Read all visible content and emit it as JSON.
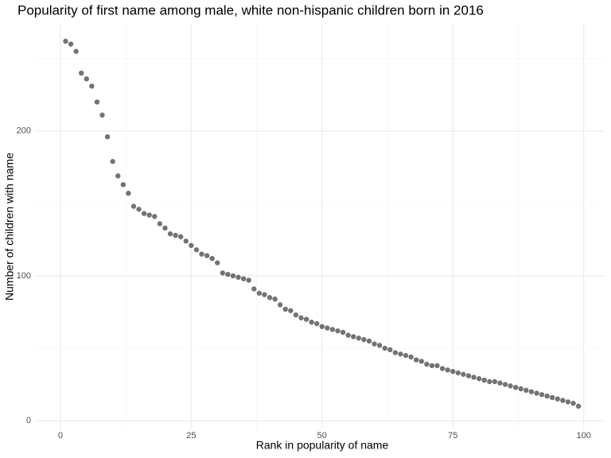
{
  "chart_data": {
    "type": "scatter",
    "title": "Popularity of first name among male, white non-hispanic children born in 2016",
    "x_label": "Rank in popularity of name",
    "y_label": "Number of children with name",
    "x": [
      1,
      2,
      3,
      4,
      5,
      6,
      7,
      8,
      9,
      10,
      11,
      12,
      13,
      14,
      15,
      16,
      17,
      18,
      19,
      20,
      21,
      22,
      23,
      24,
      25,
      26,
      27,
      28,
      29,
      30,
      31,
      32,
      33,
      34,
      35,
      36,
      37,
      38,
      39,
      40,
      41,
      42,
      43,
      44,
      45,
      46,
      47,
      48,
      49,
      50,
      51,
      52,
      53,
      54,
      55,
      56,
      57,
      58,
      59,
      60,
      61,
      62,
      63,
      64,
      65,
      66,
      67,
      68,
      69,
      70,
      71,
      72,
      73,
      74,
      75,
      76,
      77,
      78,
      79,
      80,
      81,
      82,
      83,
      84,
      85,
      86,
      87,
      88,
      89,
      90,
      91,
      92,
      93,
      94,
      95,
      96,
      97,
      98,
      99
    ],
    "values": [
      262,
      260,
      255,
      240,
      236,
      231,
      220,
      211,
      196,
      179,
      169,
      163,
      157,
      148,
      146,
      143,
      142,
      141,
      136,
      133,
      129,
      128,
      127,
      124,
      121,
      118,
      115,
      114,
      112,
      109,
      102,
      101,
      100,
      99,
      98,
      97,
      91,
      88,
      87,
      85,
      84,
      80,
      77,
      76,
      73,
      71,
      70,
      68,
      67,
      65,
      64,
      63,
      62,
      61,
      59,
      58,
      57,
      56,
      55,
      53,
      52,
      50,
      49,
      47,
      46,
      45,
      44,
      42,
      41,
      39,
      38,
      38,
      36,
      35,
      34,
      33,
      32,
      31,
      30,
      29,
      28,
      27,
      27,
      26,
      25,
      24,
      23,
      22,
      21,
      20,
      19,
      18,
      17,
      16,
      15,
      14,
      13,
      12,
      10
    ],
    "color": "#000000",
    "xlim": [
      -5,
      104
    ],
    "ylim": [
      -6,
      274
    ],
    "xticks": [
      0,
      25,
      50,
      75,
      100
    ],
    "yticks": [
      0,
      100,
      200
    ],
    "x_minor_ticks": [
      12.5,
      37.5,
      62.5,
      87.5
    ],
    "y_minor_ticks": [
      50,
      150,
      250
    ],
    "grid": true
  }
}
